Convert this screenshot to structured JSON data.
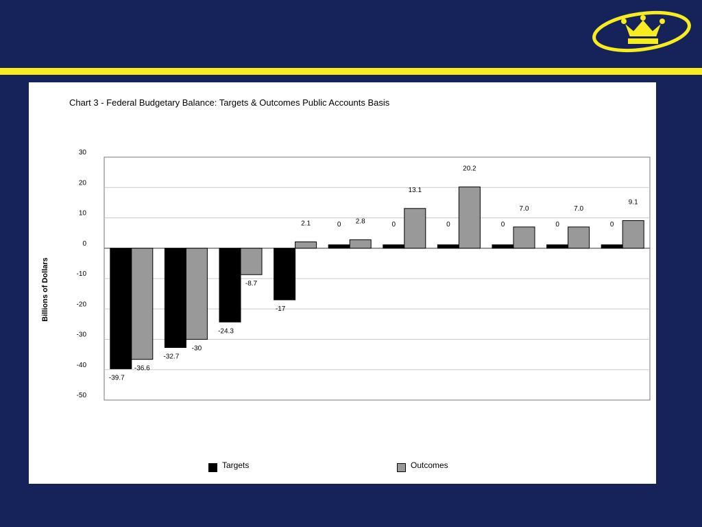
{
  "colors": {
    "background": "#16235a",
    "accent_bar": "#f7ec1f",
    "logo": "#f7ec1f",
    "targets": "#000000",
    "outcomes": "#999999"
  },
  "logo": {
    "icon": "crown-logo-icon"
  },
  "chart_data": {
    "type": "bar",
    "title": "Chart 3 - Federal Budgetary Balance: Targets & Outcomes Public Accounts Basis",
    "xlabel": "",
    "ylabel": "Billions of Dollars",
    "ylim": [
      -50,
      30
    ],
    "yticks": [
      "30",
      "20",
      "10",
      "0",
      "-10",
      "-20",
      "-30",
      "-40",
      "-50"
    ],
    "grid": true,
    "legend_position": "bottom",
    "categories": [
      "",
      "",
      "",
      "",
      "",
      "",
      "",
      "",
      "",
      ""
    ],
    "series": [
      {
        "name": "Targets",
        "color": "#000000",
        "values": [
          -39.7,
          -32.7,
          -24.3,
          -17,
          0,
          0,
          0,
          0,
          0,
          0
        ],
        "labels": [
          "-39.7",
          "-32.7",
          "-24.3",
          "-17",
          "0",
          "0",
          "0",
          "0",
          "0",
          "0"
        ]
      },
      {
        "name": "Outcomes",
        "color": "#999999",
        "values": [
          -36.6,
          -30,
          -8.7,
          2.1,
          2.8,
          13.1,
          20.2,
          7.0,
          7.0,
          9.1
        ],
        "labels": [
          "-36.6",
          "-30",
          "-8.7",
          "2.1",
          "2.8",
          "13.1",
          "20.2",
          "7.0",
          "7.0",
          "9.1"
        ]
      }
    ]
  }
}
